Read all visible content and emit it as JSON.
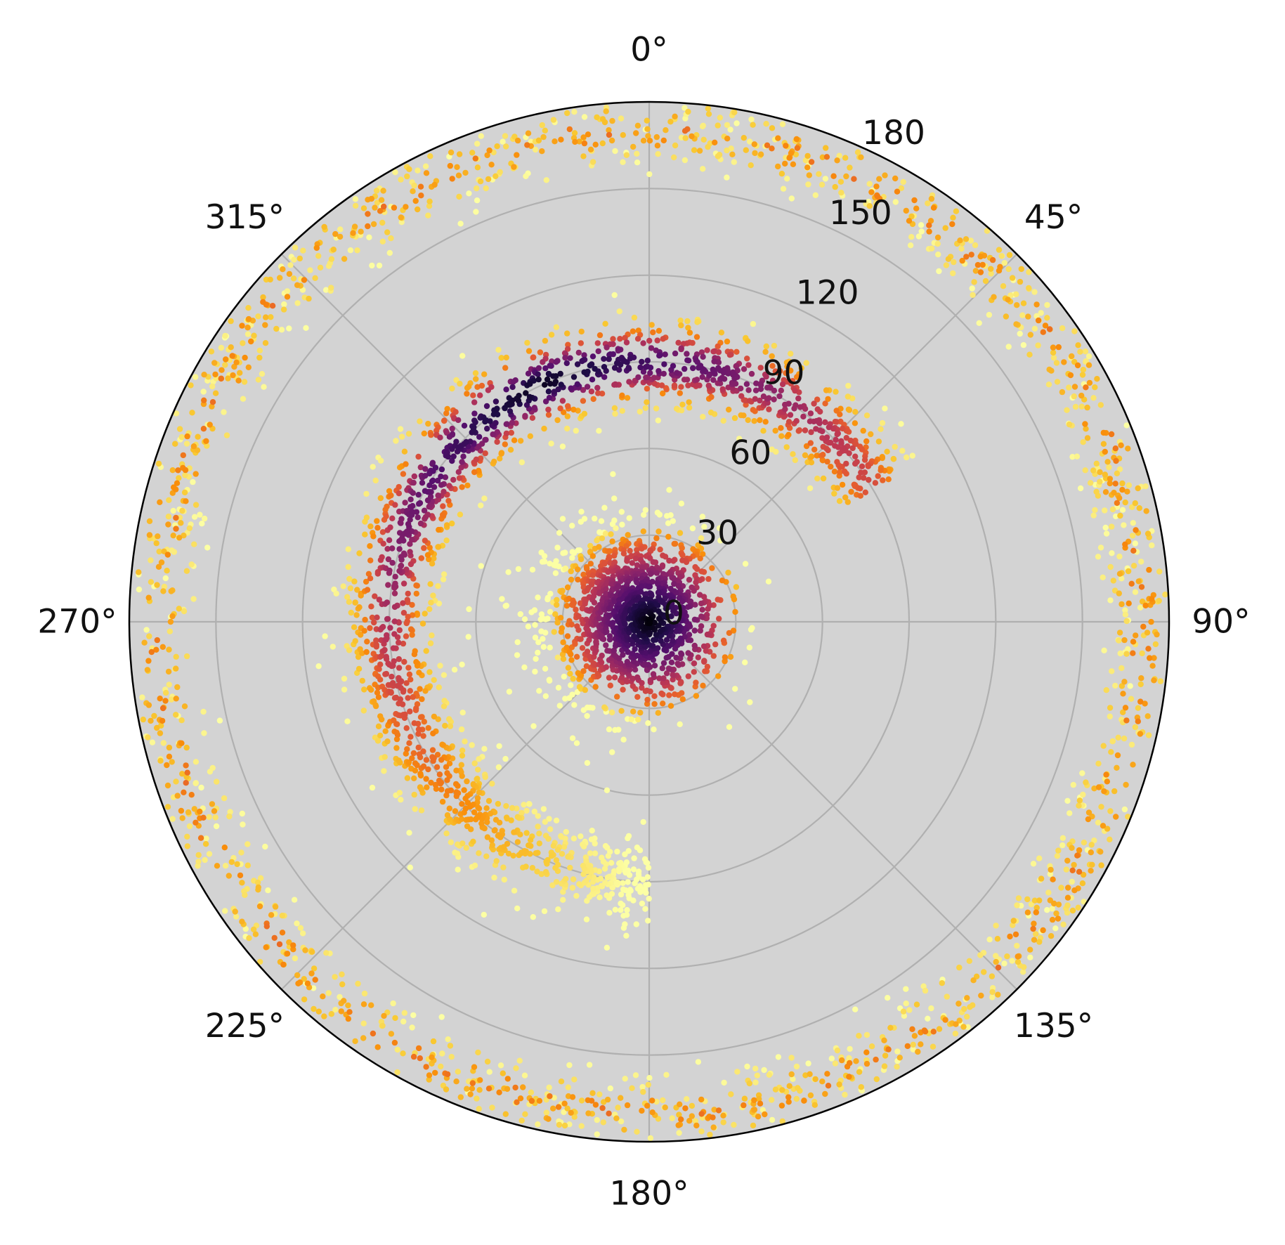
{
  "chart_data": {
    "type": "scatter",
    "projection": "polar",
    "theta_zero_location": "N",
    "theta_direction": "clockwise",
    "theta_ticks": [
      0,
      45,
      90,
      135,
      180,
      225,
      270,
      315
    ],
    "theta_tick_labels": [
      "0°",
      "45°",
      "90°",
      "135°",
      "180°",
      "225°",
      "270°",
      "315°"
    ],
    "r_ticks": [
      0,
      30,
      60,
      90,
      120,
      150,
      180
    ],
    "r_tick_labels": [
      "0",
      "30",
      "60",
      "90",
      "120",
      "150",
      "180"
    ],
    "r_label_angle_deg": 22.5,
    "rlim": [
      0,
      180
    ],
    "grid": true,
    "background_color": "#d3d3d3",
    "grid_color": "#b0b0b0",
    "colormap": "inferno",
    "color_meaning": "local point density (dark = dense, light = sparse)",
    "clusters": [
      {
        "shape": "disk",
        "center_theta_deg": 0,
        "center_r": 0,
        "approx_point_count": 1300,
        "radius_spread_r": 30,
        "density": "very high"
      },
      {
        "shape": "ring arc",
        "theta_range_deg": [
          -180,
          60
        ],
        "approx_r": 90,
        "approx_point_count": 1800,
        "radial_spread": 8,
        "density": "high near 315°–0°, low near 180°"
      },
      {
        "shape": "full ring",
        "theta_range_deg": [
          0,
          360
        ],
        "approx_r": 170,
        "approx_point_count": 1800,
        "radial_spread": 6,
        "density": "low"
      }
    ]
  }
}
